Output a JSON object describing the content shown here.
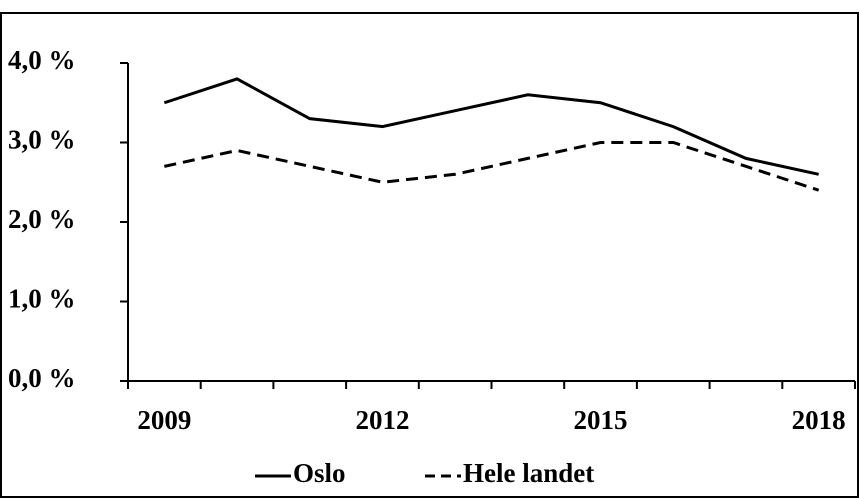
{
  "chart_data": {
    "type": "line",
    "categories": [
      "2009",
      null,
      null,
      "2012",
      null,
      null,
      "2015",
      null,
      null,
      "2018"
    ],
    "series": [
      {
        "name": "Oslo",
        "color": "#000000",
        "linestyle": "solid",
        "values": [
          3.5,
          3.8,
          3.3,
          3.2,
          3.4,
          3.6,
          3.5,
          3.2,
          2.8,
          2.6
        ]
      },
      {
        "name": "Hele landet",
        "color": "#000000",
        "linestyle": "dashed",
        "values": [
          2.7,
          2.9,
          2.7,
          2.5,
          2.6,
          2.8,
          3.0,
          3.0,
          2.7,
          2.4
        ]
      }
    ],
    "ylim": [
      0,
      4
    ],
    "yticks": [
      {
        "value": 0,
        "label": "0,0 %"
      },
      {
        "value": 1,
        "label": "1,0 %"
      },
      {
        "value": 2,
        "label": "2,0 %"
      },
      {
        "value": 3,
        "label": "3,0 %"
      },
      {
        "value": 4,
        "label": "4,0 %"
      }
    ],
    "grid": false,
    "legend": "bottom"
  }
}
